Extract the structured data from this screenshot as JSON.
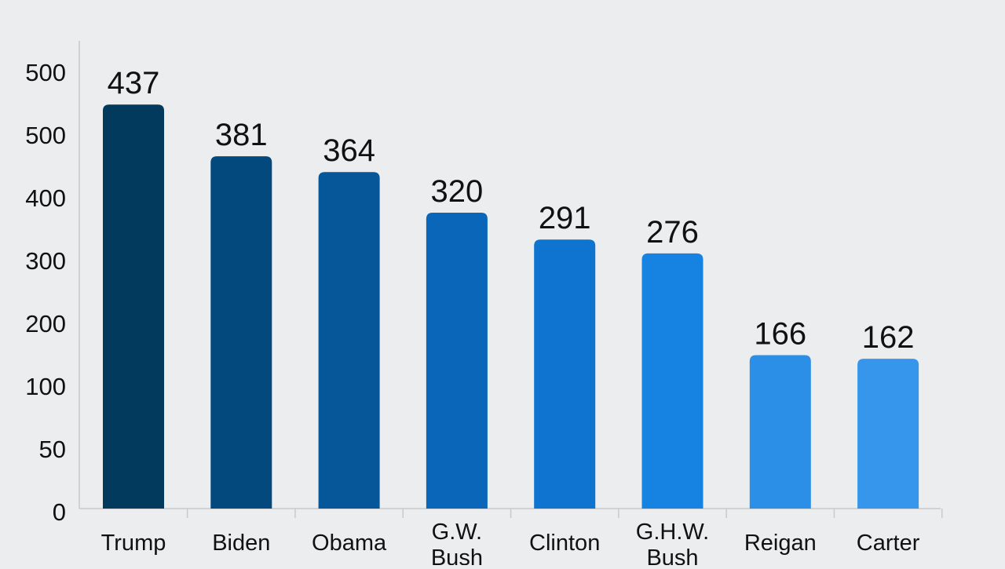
{
  "chart_data": {
    "type": "bar",
    "title": "",
    "xlabel": "",
    "ylabel": "",
    "categories": [
      "Trump",
      "Biden",
      "Obama",
      "G.W. Bush",
      "Clinton",
      "G.H.W. Bush",
      "Reigan",
      "Carter"
    ],
    "values": [
      437,
      381,
      364,
      320,
      291,
      276,
      166,
      162
    ],
    "y_tick_labels": [
      "0",
      "50",
      "100",
      "200",
      "300",
      "400",
      "500",
      "500"
    ],
    "bar_colors": [
      "#013a5c",
      "#03497d",
      "#05579a",
      "#0a66b8",
      "#0f74d0",
      "#1683e3",
      "#2b8fe8",
      "#3596ec"
    ],
    "grid": false,
    "legend": "none"
  }
}
